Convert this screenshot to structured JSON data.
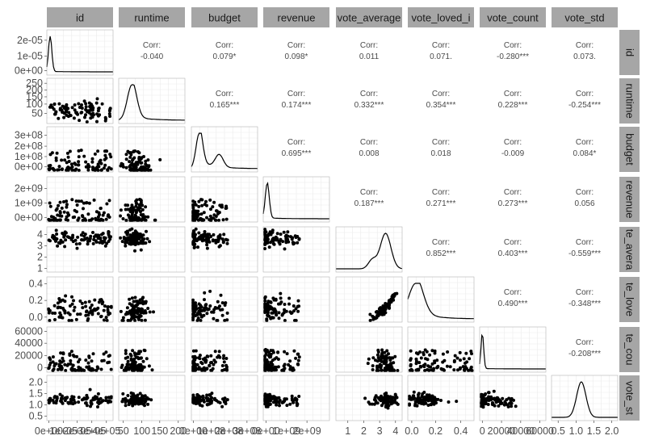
{
  "chart_data": {
    "type": "scatter",
    "variables": [
      "id",
      "runtime",
      "budget",
      "revenue",
      "vote_average",
      "vote_loved_index",
      "vote_count",
      "vote_std"
    ],
    "column_strips": [
      "id",
      "runtime",
      "budget",
      "revenue",
      "vote_average",
      "vote_loved_i",
      "vote_count",
      "vote_std"
    ],
    "row_strips": [
      "id",
      "runtime",
      "budget",
      "revenue",
      "te_avera",
      "te_love",
      "te_cou",
      "vote_st"
    ],
    "x_tick_labels": [
      [
        "0e+00",
        "1e+05",
        "2e+05",
        "3e+05",
        "4e+05"
      ],
      [
        "50",
        "100",
        "150",
        "200"
      ],
      [
        "0e+00",
        "1e+08",
        "2e+08",
        "3e+08"
      ],
      [
        "0e+00",
        "1e+09",
        "2e+09"
      ],
      [
        "1",
        "2",
        "3",
        "4"
      ],
      [
        "0.0",
        "0.2",
        "0.4"
      ],
      [
        "0",
        "20000",
        "40000",
        "60000"
      ],
      [
        "0.5",
        "1.0",
        "1.5",
        "2.0"
      ]
    ],
    "y_tick_labels": [
      [
        "0e+00",
        "1e-05",
        "2e-05"
      ],
      [
        "50",
        "100",
        "150",
        "200",
        "250"
      ],
      [
        "0e+00",
        "1e+08",
        "2e+08",
        "3e+08"
      ],
      [
        "0e+00",
        "1e+09",
        "2e+09"
      ],
      [
        "1",
        "2",
        "3",
        "4"
      ],
      [
        "0.0",
        "0.2",
        "0.4"
      ],
      [
        "0",
        "20000",
        "40000",
        "60000"
      ],
      [
        "0.5",
        "1.0",
        "1.5",
        "2.0"
      ]
    ],
    "correlation_label": "Corr:",
    "correlations": [
      {
        "row": 0,
        "col": 1,
        "text": "-0.040"
      },
      {
        "row": 0,
        "col": 2,
        "text": "0.079*"
      },
      {
        "row": 0,
        "col": 3,
        "text": "0.098*"
      },
      {
        "row": 0,
        "col": 4,
        "text": "0.011"
      },
      {
        "row": 0,
        "col": 5,
        "text": "0.071."
      },
      {
        "row": 0,
        "col": 6,
        "text": "-0.280***"
      },
      {
        "row": 0,
        "col": 7,
        "text": "0.073."
      },
      {
        "row": 1,
        "col": 2,
        "text": "0.165***"
      },
      {
        "row": 1,
        "col": 3,
        "text": "0.174***"
      },
      {
        "row": 1,
        "col": 4,
        "text": "0.332***"
      },
      {
        "row": 1,
        "col": 5,
        "text": "0.354***"
      },
      {
        "row": 1,
        "col": 6,
        "text": "0.228***"
      },
      {
        "row": 1,
        "col": 7,
        "text": "-0.254***"
      },
      {
        "row": 2,
        "col": 3,
        "text": "0.695***"
      },
      {
        "row": 2,
        "col": 4,
        "text": "0.008"
      },
      {
        "row": 2,
        "col": 5,
        "text": "0.018"
      },
      {
        "row": 2,
        "col": 6,
        "text": "-0.009"
      },
      {
        "row": 2,
        "col": 7,
        "text": "0.084*"
      },
      {
        "row": 3,
        "col": 4,
        "text": "0.187***"
      },
      {
        "row": 3,
        "col": 5,
        "text": "0.271***"
      },
      {
        "row": 3,
        "col": 6,
        "text": "0.273***"
      },
      {
        "row": 3,
        "col": 7,
        "text": "0.056"
      },
      {
        "row": 4,
        "col": 5,
        "text": "0.852***"
      },
      {
        "row": 4,
        "col": 6,
        "text": "0.403***"
      },
      {
        "row": 4,
        "col": 7,
        "text": "-0.559***"
      },
      {
        "row": 5,
        "col": 6,
        "text": "0.490***"
      },
      {
        "row": 5,
        "col": 7,
        "text": "-0.348***"
      },
      {
        "row": 6,
        "col": 7,
        "text": "-0.208***"
      }
    ],
    "diagonal": "density",
    "lower": "scatter",
    "upper": "correlation",
    "grid": true,
    "colors": {
      "strip": "#a6a6a6",
      "panel_border": "#b3b3b3",
      "grid": "#ebebeb",
      "points": "#000000",
      "line": "#000000"
    }
  }
}
